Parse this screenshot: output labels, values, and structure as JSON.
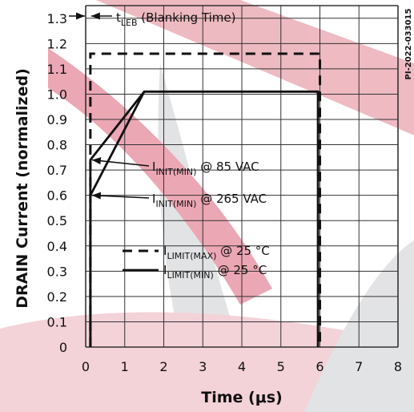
{
  "figure_id": "PI-2022-033015",
  "chart_data": {
    "type": "line",
    "xlabel": "Time (μs)",
    "ylabel": "DRAIN Current (normalized)",
    "xlim": [
      0,
      8
    ],
    "ylim": [
      0,
      1.35
    ],
    "x_ticks": [
      "0",
      "1",
      "2",
      "3",
      "4",
      "5",
      "6",
      "7",
      "8"
    ],
    "y_ticks": [
      "0",
      "0.1",
      "0.2",
      "0.3",
      "0.4",
      "0.5",
      "0.6",
      "0.7",
      "0.8",
      "0.9",
      "1.0",
      "1.1",
      "1.2",
      "1.3"
    ],
    "grid": true,
    "series": [
      {
        "name": "I_LIMIT(MAX) @ 25 °C",
        "style": "dashed",
        "x": [
          0.12,
          0.12,
          6.0,
          6.0
        ],
        "y": [
          0,
          1.16,
          1.16,
          0
        ]
      },
      {
        "name": "I_LIMIT(MIN) @ 25 °C",
        "style": "solid",
        "x": [
          0.12,
          0.12,
          1.5,
          5.95,
          5.95
        ],
        "y": [
          0,
          0.74,
          1.01,
          1.01,
          0
        ]
      },
      {
        "name": "I_LIMIT(MIN) @ 25 °C (265 VAC)",
        "style": "solid",
        "x": [
          0.12,
          0.12,
          1.5
        ],
        "y": [
          0,
          0.6,
          1.01
        ]
      }
    ],
    "annotations": {
      "blanking": {
        "main": "t",
        "sub": "LEB",
        "rest": " (Blanking Time)",
        "x_start": 0,
        "x_end": 0.12
      },
      "init_85": {
        "main": "I",
        "sub": "INIT(MIN)",
        "rest": " @ 85 VAC",
        "point_x": 0.12,
        "point_y": 0.74
      },
      "init_265": {
        "main": "I",
        "sub": "INIT(MIN)",
        "rest": " @ 265 VAC",
        "point_x": 0.12,
        "point_y": 0.6
      }
    },
    "legend": [
      {
        "main": "I",
        "sub": "LIMIT(MAX)",
        "rest": " @ 25 °C",
        "style": "dashed"
      },
      {
        "main": "I",
        "sub": "LIMIT(MIN)",
        "rest": " @ 25 °C",
        "style": "solid"
      }
    ],
    "colors": {
      "line": "#111111",
      "grid": "#333333",
      "watermark": "#d93a5a"
    }
  }
}
